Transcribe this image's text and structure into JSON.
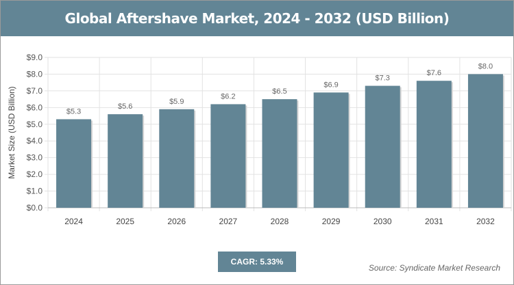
{
  "title": "Global Aftershave Market, 2024 - 2032 (USD Billion)",
  "cagr": "CAGR: 5.33%",
  "source": "Source: Syndicate Market Research",
  "colors": {
    "bar": "#628595",
    "grid": "#e2e2e2"
  },
  "chart_data": {
    "type": "bar",
    "title": "Global Aftershave Market, 2024 - 2032 (USD Billion)",
    "categories": [
      "2024",
      "2025",
      "2026",
      "2027",
      "2028",
      "2029",
      "2030",
      "2031",
      "2032"
    ],
    "values": [
      5.3,
      5.6,
      5.9,
      6.2,
      6.5,
      6.9,
      7.3,
      7.6,
      8.0
    ],
    "value_labels": [
      "$5.3",
      "$5.6",
      "$5.9",
      "$6.2",
      "$6.5",
      "$6.9",
      "$7.3",
      "$7.6",
      "$8.0"
    ],
    "xlabel": "",
    "ylabel": "Market Size (USD Billion)",
    "ylim": [
      0,
      9
    ],
    "yticks": [
      "$0.0",
      "$1.0",
      "$2.0",
      "$3.0",
      "$4.0",
      "$5.0",
      "$6.0",
      "$7.0",
      "$8.0",
      "$9.0"
    ],
    "grid": true
  }
}
